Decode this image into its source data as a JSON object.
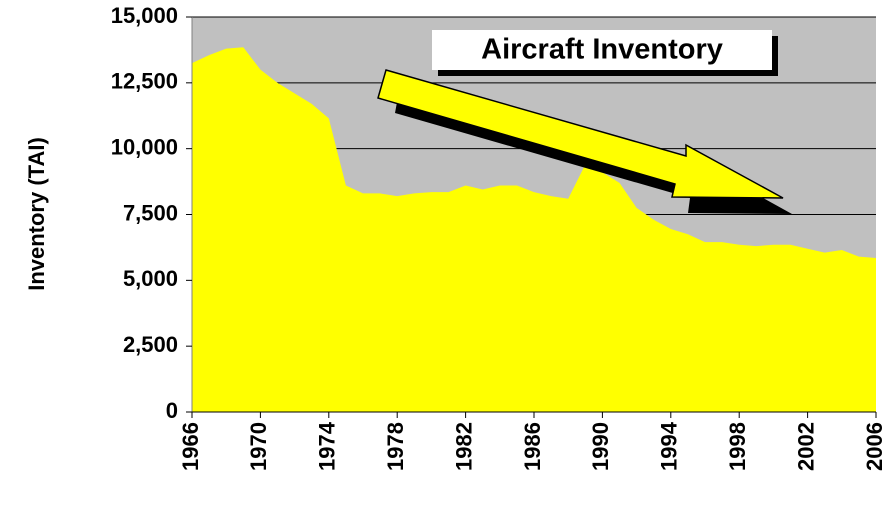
{
  "chart_data": {
    "type": "area",
    "title": "Aircraft Inventory",
    "y_label": "Inventory (TAI)",
    "x": [
      1966,
      1967,
      1968,
      1969,
      1970,
      1971,
      1972,
      1973,
      1974,
      1975,
      1976,
      1977,
      1978,
      1979,
      1980,
      1981,
      1982,
      1983,
      1984,
      1985,
      1986,
      1987,
      1988,
      1989,
      1990,
      1991,
      1992,
      1993,
      1994,
      1995,
      1996,
      1997,
      1998,
      1999,
      2000,
      2001,
      2002,
      2003,
      2004,
      2005,
      2006
    ],
    "values": [
      13250,
      13550,
      13800,
      13850,
      13000,
      12500,
      12100,
      11700,
      11150,
      8600,
      8300,
      8300,
      8200,
      8300,
      8350,
      8350,
      8600,
      8450,
      8600,
      8600,
      8350,
      8200,
      8100,
      9400,
      9100,
      8700,
      7750,
      7300,
      6950,
      6750,
      6450,
      6450,
      6350,
      6300,
      6350,
      6350,
      6200,
      6050,
      6150,
      5900,
      5850
    ],
    "color": "#ffff00",
    "background": "#c0c0c0",
    "xlim": [
      1966,
      2006
    ],
    "xticks": [
      1966,
      1970,
      1974,
      1978,
      1982,
      1986,
      1990,
      1994,
      1998,
      2002,
      2006
    ],
    "ylim": [
      0,
      15000
    ],
    "yticks": [
      0,
      {
        "value": 2500,
        "label": "2,500"
      },
      {
        "value": 5000,
        "label": "5,000"
      },
      {
        "value": 7500,
        "label": "7,500"
      },
      {
        "value": 10000,
        "label": "10,000"
      },
      {
        "value": 12500,
        "label": "12,500"
      },
      {
        "value": 15000,
        "label": "15,000"
      }
    ],
    "grid": true
  }
}
